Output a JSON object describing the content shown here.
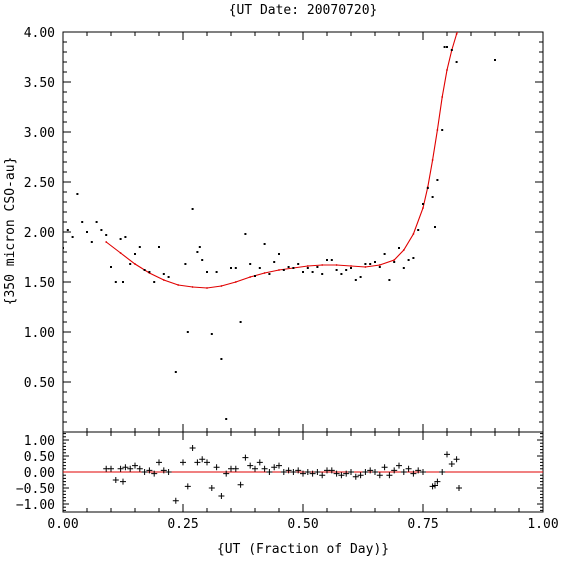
{
  "chart_data": [
    {
      "type": "scatter",
      "title": "{UT Date: 20070720}",
      "ylabel": "{350 micron CSO-au}",
      "xlim": [
        0.0,
        1.0
      ],
      "ylim": [
        0.0,
        4.0
      ],
      "x_ticks": [
        "0.00",
        "0.25",
        "0.50",
        "0.75",
        "1.00"
      ],
      "y_ticks": [
        "0.50",
        "1.00",
        "1.50",
        "2.00",
        "2.50",
        "3.00",
        "3.50",
        "4.00"
      ],
      "series": [
        {
          "kind": "points",
          "x": [
            0.0,
            0.01,
            0.02,
            0.03,
            0.04,
            0.05,
            0.06,
            0.07,
            0.08,
            0.09,
            0.1,
            0.11,
            0.12,
            0.125,
            0.13,
            0.14,
            0.15,
            0.16,
            0.17,
            0.18,
            0.19,
            0.2,
            0.21,
            0.22,
            0.235,
            0.255,
            0.26,
            0.27,
            0.28,
            0.285,
            0.29,
            0.3,
            0.31,
            0.32,
            0.33,
            0.34,
            0.35,
            0.36,
            0.37,
            0.38,
            0.39,
            0.4,
            0.41,
            0.42,
            0.43,
            0.44,
            0.45,
            0.46,
            0.47,
            0.48,
            0.49,
            0.5,
            0.51,
            0.52,
            0.53,
            0.54,
            0.55,
            0.56,
            0.57,
            0.58,
            0.59,
            0.6,
            0.61,
            0.62,
            0.63,
            0.64,
            0.65,
            0.66,
            0.67,
            0.68,
            0.69,
            0.7,
            0.71,
            0.72,
            0.73,
            0.74,
            0.75,
            0.76,
            0.77,
            0.775,
            0.78,
            0.79,
            0.795,
            0.8,
            0.81,
            0.82,
            0.9
          ],
          "y": [
            1.84,
            2.02,
            1.95,
            2.38,
            2.1,
            2.0,
            1.9,
            2.1,
            2.02,
            1.97,
            1.65,
            1.5,
            1.93,
            1.5,
            1.95,
            1.68,
            1.78,
            1.85,
            1.62,
            1.6,
            1.5,
            1.85,
            1.58,
            1.55,
            0.6,
            1.68,
            1.0,
            2.23,
            1.8,
            1.85,
            1.72,
            1.6,
            0.98,
            1.6,
            0.73,
            0.13,
            1.64,
            1.64,
            1.1,
            1.98,
            1.68,
            1.56,
            1.64,
            1.88,
            1.58,
            1.7,
            1.78,
            1.62,
            1.65,
            1.64,
            1.68,
            1.6,
            1.64,
            1.6,
            1.65,
            1.58,
            1.72,
            1.72,
            1.62,
            1.58,
            1.62,
            1.64,
            1.52,
            1.55,
            1.68,
            1.68,
            1.7,
            1.65,
            1.78,
            1.52,
            1.7,
            1.84,
            1.64,
            1.72,
            1.74,
            2.02,
            2.28,
            2.44,
            2.35,
            2.05,
            2.52,
            3.02,
            3.85,
            3.85,
            3.82,
            3.7,
            3.72
          ]
        },
        {
          "kind": "fit",
          "x": [
            0.09,
            0.12,
            0.15,
            0.18,
            0.21,
            0.24,
            0.27,
            0.3,
            0.33,
            0.36,
            0.39,
            0.42,
            0.45,
            0.48,
            0.51,
            0.54,
            0.57,
            0.6,
            0.63,
            0.66,
            0.69,
            0.71,
            0.73,
            0.75,
            0.76,
            0.77,
            0.78,
            0.79,
            0.8,
            0.81,
            0.82,
            0.83
          ],
          "y": [
            1.9,
            1.79,
            1.68,
            1.59,
            1.52,
            1.47,
            1.45,
            1.44,
            1.46,
            1.5,
            1.55,
            1.59,
            1.62,
            1.64,
            1.66,
            1.67,
            1.67,
            1.66,
            1.65,
            1.67,
            1.72,
            1.82,
            1.98,
            2.24,
            2.45,
            2.72,
            3.02,
            3.35,
            3.62,
            3.82,
            3.98,
            4.1
          ]
        }
      ]
    },
    {
      "type": "scatter",
      "xlabel": "{UT (Fraction of Day)}",
      "xlim": [
        0.0,
        1.0
      ],
      "ylim": [
        -1.25,
        1.25
      ],
      "x_ticks": [
        "0.00",
        "0.25",
        "0.50",
        "0.75",
        "1.00"
      ],
      "y_ticks": [
        "1.00",
        "0.50",
        "0.00",
        "−0.50",
        "−1.00"
      ],
      "zero_line": 0.0,
      "series": [
        {
          "kind": "residuals",
          "x": [
            0.09,
            0.1,
            0.11,
            0.12,
            0.125,
            0.13,
            0.14,
            0.15,
            0.16,
            0.17,
            0.18,
            0.19,
            0.2,
            0.21,
            0.22,
            0.235,
            0.25,
            0.26,
            0.27,
            0.28,
            0.29,
            0.3,
            0.31,
            0.32,
            0.33,
            0.34,
            0.35,
            0.36,
            0.37,
            0.38,
            0.39,
            0.4,
            0.41,
            0.42,
            0.43,
            0.44,
            0.45,
            0.46,
            0.47,
            0.48,
            0.49,
            0.5,
            0.51,
            0.52,
            0.53,
            0.54,
            0.55,
            0.56,
            0.57,
            0.58,
            0.59,
            0.6,
            0.61,
            0.62,
            0.63,
            0.64,
            0.65,
            0.66,
            0.67,
            0.68,
            0.69,
            0.7,
            0.71,
            0.72,
            0.73,
            0.74,
            0.75,
            0.77,
            0.775,
            0.78,
            0.79,
            0.8,
            0.81,
            0.82,
            0.825
          ],
          "y": [
            0.1,
            0.1,
            -0.25,
            0.1,
            -0.3,
            0.15,
            0.1,
            0.2,
            0.1,
            0.0,
            0.05,
            -0.05,
            0.3,
            0.05,
            0.0,
            -0.9,
            0.3,
            -0.45,
            0.75,
            0.3,
            0.4,
            0.3,
            -0.5,
            0.15,
            -0.75,
            -0.05,
            0.1,
            0.1,
            -0.4,
            0.45,
            0.2,
            0.1,
            0.3,
            0.1,
            0.0,
            0.15,
            0.2,
            0.0,
            0.05,
            0.0,
            0.05,
            -0.05,
            0.0,
            -0.05,
            0.0,
            -0.1,
            0.05,
            0.05,
            -0.05,
            -0.1,
            -0.05,
            0.0,
            -0.15,
            -0.1,
            0.0,
            0.05,
            0.0,
            -0.1,
            0.15,
            -0.1,
            0.05,
            0.2,
            0.0,
            0.1,
            -0.05,
            0.05,
            0.0,
            -0.45,
            -0.42,
            -0.3,
            0.0,
            0.55,
            0.25,
            0.4,
            -0.5
          ]
        }
      ]
    }
  ]
}
